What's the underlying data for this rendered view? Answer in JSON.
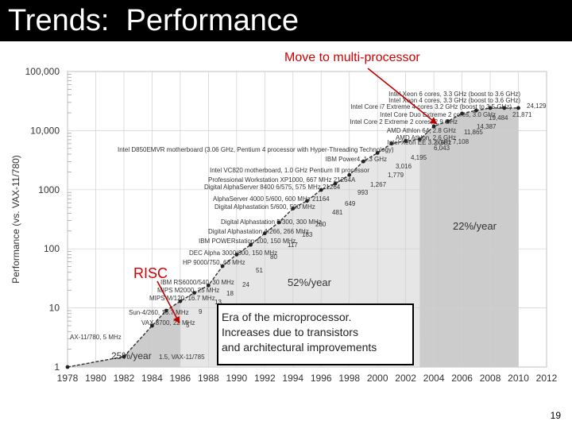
{
  "slide": {
    "title": "Trends:  Performance",
    "page_number": "19",
    "callout_multiprocessor": "Move to multi-processor",
    "callout_risc": "RISC",
    "era_box_lines": [
      "Era of the microprocessor.",
      "Increases due to transistors",
      "and architectural improvements"
    ],
    "colors": {
      "title_bar": "#000000",
      "callout": "#d00000",
      "arrow": "#c00000",
      "shade_dark": "#cccccc",
      "shade_light": "#e6e6e6",
      "line": "#333333"
    }
  },
  "chart_data": {
    "type": "line",
    "title": "",
    "xlabel": "",
    "ylabel": "Performance (vs. VAX-11/780)",
    "x_ticks": [
      "1978",
      "1980",
      "1982",
      "1984",
      "1986",
      "1988",
      "1990",
      "1992",
      "1994",
      "1996",
      "1998",
      "2000",
      "2002",
      "2004",
      "2006",
      "2008",
      "2010",
      "2012"
    ],
    "y_ticks": [
      "1",
      "10",
      "100",
      "1000",
      "10,000",
      "100,000"
    ],
    "xlim": [
      1978,
      2012
    ],
    "ylim": [
      1,
      100000
    ],
    "y_scale": "log",
    "grid": true,
    "regions": [
      {
        "label": "25%/year",
        "x": [
          1978,
          1986
        ]
      },
      {
        "label": "52%/year",
        "x": [
          1986,
          2003
        ]
      },
      {
        "label": "22%/year",
        "x": [
          2003,
          2010
        ]
      }
    ],
    "series": [
      {
        "x": [
          1978,
          1982,
          1984,
          1985,
          1986,
          1987,
          1988,
          1989,
          1990,
          1991,
          1992,
          1993,
          1994,
          1995,
          1996,
          1997,
          1998,
          1999,
          2000,
          2001,
          2002,
          2003,
          2004,
          2005,
          2006,
          2007,
          2008,
          2009,
          2010
        ],
        "values": [
          1,
          1.5,
          5,
          9,
          13,
          18,
          24,
          51,
          80,
          117,
          183,
          280,
          481,
          649,
          993,
          1267,
          1779,
          3016,
          4195,
          6043,
          6681,
          7108,
          11865,
          14387,
          19484,
          21871,
          24129,
          24129,
          24129
        ]
      }
    ],
    "data_labels": [
      "1.5, VAX-11/785",
      "5",
      "9",
      "13",
      "18",
      "24",
      "51",
      "80",
      "117",
      "183",
      "280",
      "481",
      "649",
      "993",
      "1,267",
      "1,779",
      "3,016",
      "4,195",
      "6,043",
      "6,681",
      "7,108",
      "11,865",
      "14,387",
      "19,484",
      "21,871",
      "24,129"
    ],
    "annotations": [
      "Intel Xeon 6 cores, 3.3 GHz (boost to 3.6 GHz)",
      "Intel Xeon 4 cores, 3.3 GHz (boost to 3.6 GHz)",
      "Intel Core i7 Extreme 4 cores 3.2 GHz (boost to 3.5 GHz)",
      "Intel Core Duo Extreme 2 cores, 3.0 GHz",
      "Intel Core 2 Extreme 2 cores, 2.9 GHz",
      "AMD Athlon 64, 2.8 GHz",
      "AMD Athlon, 2.6 GHz",
      "Intel Xeon EE 3.2 GHz",
      "Intel D850EMVR motherboard (3.06 GHz, Pentium 4 processor with Hyper-Threading Technology)",
      "IBM Power4, 1.3 GHz",
      "Intel VC820 motherboard, 1.0 GHz Pentium III processor",
      "Professional Workstation XP1000, 667 MHz 21264A",
      "Digital AlphaServer 8400 6/575, 575 MHz 21264",
      "AlphaServer 4000 5/600, 600 MHz 21164",
      "Digital Alphastation 5/600, 500 MHz",
      "Digital Alphastation 5/300, 300 MHz",
      "Digital Alphastation 4/266, 266 MHz",
      "IBM POWERstation 100, 150 MHz",
      "DEC Alpha 3000/600, 150 MHz",
      "HP 9000/750, 66 MHz",
      "IBM RS6000/540, 30 MHz",
      "MIPS M2000, 25 MHz",
      "MIPS M/120, 16.7 MHz",
      "Sun-4/260, 16.7 MHz",
      "VAX 8700, 22 MHz",
      "AX-11/780, 5 MHz"
    ]
  }
}
